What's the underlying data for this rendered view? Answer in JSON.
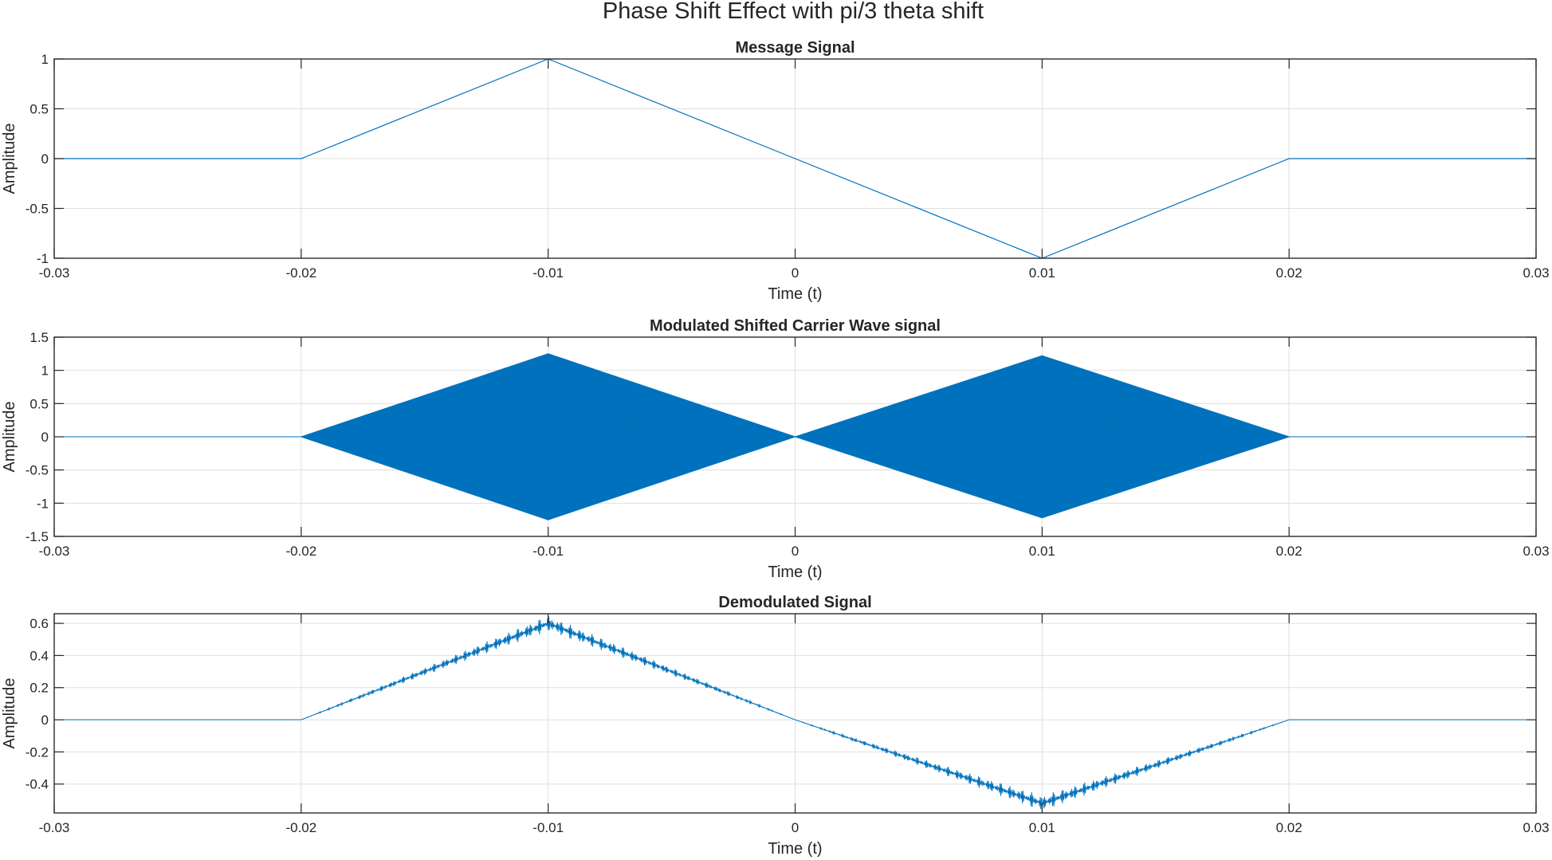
{
  "figure": {
    "title": "Phase Shift Effect with pi/3 theta shift",
    "line_color": "#0072BD"
  },
  "chart_data": [
    {
      "type": "line",
      "title": "Message Signal",
      "xlabel": "Time (t)",
      "ylabel": "Amplitude",
      "xlim": [
        -0.03,
        0.03
      ],
      "ylim": [
        -1,
        1
      ],
      "grid": true,
      "xticks": [
        -0.03,
        -0.02,
        -0.01,
        0,
        0.01,
        0.02,
        0.03
      ],
      "xtick_labels": [
        "-0.03",
        "-0.02",
        "-0.01",
        "0",
        "0.01",
        "0.02",
        "0.03"
      ],
      "yticks": [
        -1,
        -0.5,
        0,
        0.5,
        1
      ],
      "ytick_labels": [
        "-1",
        "-0.5",
        "0",
        "0.5",
        "1"
      ],
      "series": [
        {
          "x": [
            -0.03,
            -0.02,
            -0.01,
            0.0,
            0.01,
            0.02,
            0.03
          ],
          "y": [
            0,
            0,
            1,
            0,
            -1,
            0,
            0
          ]
        }
      ]
    },
    {
      "type": "line",
      "title": "Modulated Shifted Carrier Wave signal",
      "xlabel": "Time (t)",
      "ylabel": "Amplitude",
      "xlim": [
        -0.03,
        0.03
      ],
      "ylim": [
        -1.5,
        1.5
      ],
      "grid": true,
      "xticks": [
        -0.03,
        -0.02,
        -0.01,
        0,
        0.01,
        0.02,
        0.03
      ],
      "xtick_labels": [
        "-0.03",
        "-0.02",
        "-0.01",
        "0",
        "0.01",
        "0.02",
        "0.03"
      ],
      "yticks": [
        -1.5,
        -1,
        -0.5,
        0,
        0.5,
        1,
        1.5
      ],
      "ytick_labels": [
        "-1.5",
        "-1",
        "-0.5",
        "0",
        "0.5",
        "1",
        "1.5"
      ],
      "series": [
        {
          "envelope_x": [
            -0.03,
            -0.02,
            -0.01,
            0.0,
            0.01,
            0.02,
            0.03
          ],
          "envelope_upper": [
            0,
            0,
            1.25,
            0,
            1.22,
            0,
            0
          ],
          "envelope_lower": [
            0,
            0,
            -1.25,
            0,
            -1.22,
            0,
            0
          ]
        }
      ]
    },
    {
      "type": "line",
      "title": "Demodulated Signal",
      "xlabel": "Time (t)",
      "ylabel": "Amplitude",
      "xlim": [
        -0.03,
        0.03
      ],
      "ylim": [
        -0.58,
        0.66
      ],
      "grid": true,
      "xticks": [
        -0.03,
        -0.02,
        -0.01,
        0,
        0.01,
        0.02,
        0.03
      ],
      "xtick_labels": [
        "-0.03",
        "-0.02",
        "-0.01",
        "0",
        "0.01",
        "0.02",
        "0.03"
      ],
      "yticks": [
        -0.4,
        -0.2,
        0,
        0.2,
        0.4,
        0.6
      ],
      "ytick_labels": [
        "-0.4",
        "-0.2",
        "0",
        "0.2",
        "0.4",
        "0.6"
      ],
      "series": [
        {
          "x": [
            -0.03,
            -0.02,
            -0.01,
            0.0,
            0.01,
            0.02,
            0.03
          ],
          "y": [
            0,
            0,
            0.6,
            0,
            -0.52,
            0,
            0
          ],
          "ripple_peak": [
            0,
            0,
            0.05,
            0,
            0.05,
            0,
            0
          ]
        }
      ]
    }
  ]
}
